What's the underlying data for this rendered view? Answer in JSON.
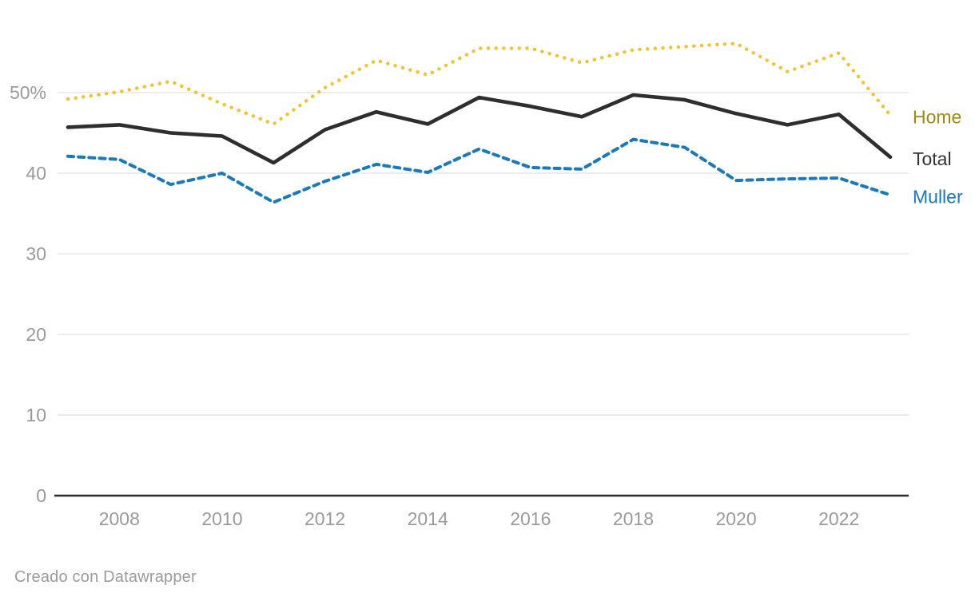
{
  "chart_data": {
    "type": "line",
    "x": [
      2007,
      2008,
      2009,
      2010,
      2011,
      2012,
      2013,
      2014,
      2015,
      2016,
      2017,
      2018,
      2019,
      2020,
      2021,
      2022,
      2023
    ],
    "series": [
      {
        "name": "Home",
        "style": "dotted",
        "line_color": "#f5c327",
        "label_color": "#a8870f",
        "values": [
          49.2,
          50.1,
          51.4,
          48.6,
          46.1,
          50.6,
          54.0,
          52.2,
          55.5,
          55.5,
          53.7,
          55.3,
          55.7,
          56.1,
          52.6,
          54.9,
          47.2
        ]
      },
      {
        "name": "Total",
        "style": "solid",
        "line_color": "#2e2e2e",
        "label_color": "#333333",
        "values": [
          45.7,
          46.0,
          45.0,
          44.6,
          41.3,
          45.4,
          47.6,
          46.1,
          49.4,
          48.3,
          47.0,
          49.7,
          49.1,
          47.4,
          46.0,
          47.3,
          42.0
        ]
      },
      {
        "name": "Muller",
        "style": "dashed",
        "line_color": "#1779be",
        "label_color": "#1779be",
        "values": [
          42.1,
          41.7,
          38.6,
          40.0,
          36.4,
          39.0,
          41.1,
          40.1,
          43.0,
          40.7,
          40.5,
          44.2,
          43.2,
          39.1,
          39.3,
          39.4,
          37.3
        ]
      }
    ],
    "y_ticks": [
      {
        "value": 0,
        "label": "0"
      },
      {
        "value": 10,
        "label": "10"
      },
      {
        "value": 20,
        "label": "20"
      },
      {
        "value": 30,
        "label": "30"
      },
      {
        "value": 40,
        "label": "40"
      },
      {
        "value": 50,
        "label": "50%"
      }
    ],
    "x_ticks": [
      2008,
      2010,
      2012,
      2014,
      2016,
      2018,
      2020,
      2022
    ],
    "ylim": [
      0,
      58
    ],
    "grid": "horizontal-only",
    "legend_position": "direct-labels-right",
    "title": "",
    "xlabel": "",
    "ylabel": ""
  },
  "colors": {
    "gridline": "#e7e7e7",
    "baseline": "#2b2b2b",
    "tick_text": "#9a9a9a",
    "footer_text": "#9b9b9b",
    "background": "#ffffff"
  },
  "footer": {
    "credit": "Creado con Datawrapper"
  }
}
